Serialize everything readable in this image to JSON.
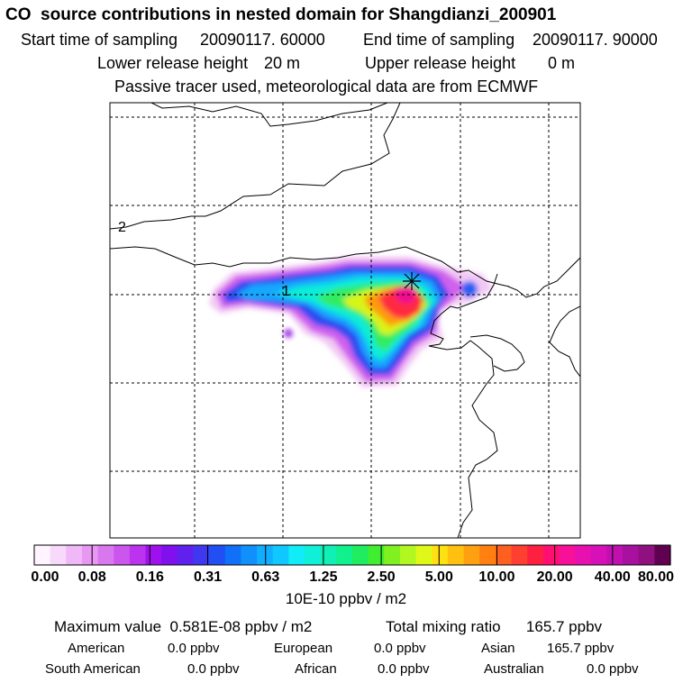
{
  "header": {
    "title": "CO  source contributions in nested domain for Shangdianzi_200901",
    "start_label": "Start time of sampling",
    "start_value": "20090117. 60000",
    "end_label": "End time of sampling",
    "end_value": "20090117. 90000",
    "lower_label": "Lower release height",
    "lower_value": "20 m",
    "upper_label": "Upper release height",
    "upper_value": "0 m",
    "note": "Passive tracer used, meteorological data are from ECMWF"
  },
  "map": {
    "markers": [
      {
        "label": "1"
      },
      {
        "label": "2"
      }
    ],
    "station_symbol": "cross-x-star"
  },
  "colorbar": {
    "tick_labels": [
      "0.00",
      "0.08",
      "0.16",
      "0.31",
      "0.63",
      "1.25",
      "2.50",
      "5.00",
      "10.00",
      "20.00",
      "40.00",
      "80.00"
    ],
    "colors": [
      "#fff4ff",
      "#f8d8fb",
      "#f0b8f6",
      "#e898f2",
      "#d978ee",
      "#cc55ee",
      "#bb33ee",
      "#a010ee",
      "#8010ee",
      "#6020ee",
      "#4038f0",
      "#2050f4",
      "#1070f8",
      "#1090fb",
      "#10aeff",
      "#10c8ff",
      "#10ecf8",
      "#10f0d8",
      "#10f0b4",
      "#10f08c",
      "#20ec60",
      "#40ee30",
      "#80f020",
      "#b0f820",
      "#e0f818",
      "#ffe010",
      "#ffc010",
      "#ffa010",
      "#ff8010",
      "#ff6020",
      "#ff4030",
      "#ff2040",
      "#ff1070",
      "#f81098",
      "#e810b0",
      "#d810b8",
      "#c010b0",
      "#a810a0",
      "#901080",
      "#600050"
    ],
    "units": "10E-10 ppbv / m2"
  },
  "summary": {
    "max_label": "Maximum value",
    "max_value": "0.581E-08 ppbv / m2",
    "total_label": "Total mixing ratio",
    "total_value": "165.7 ppbv",
    "regions": [
      {
        "name": "American",
        "value": "0.0 ppbv"
      },
      {
        "name": "European",
        "value": "0.0 ppbv"
      },
      {
        "name": "Asian",
        "value": "165.7 ppbv"
      },
      {
        "name": "South American",
        "value": "0.0 ppbv"
      },
      {
        "name": "African",
        "value": "0.0 ppbv"
      },
      {
        "name": "Australian",
        "value": "0.0 ppbv"
      }
    ]
  }
}
